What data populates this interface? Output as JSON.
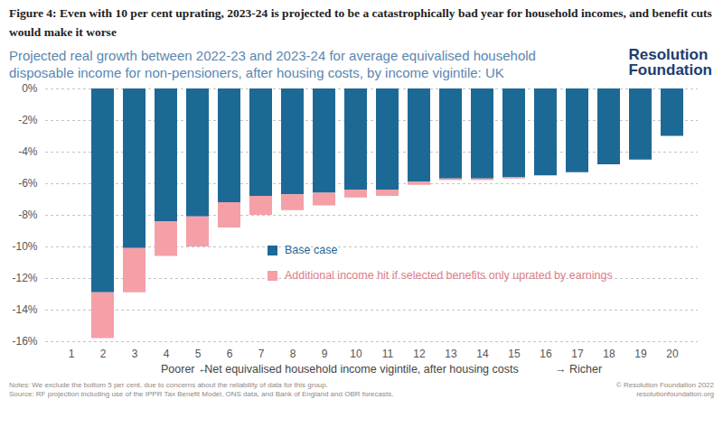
{
  "chart_data": {
    "type": "bar",
    "stacked": true,
    "figure_title": "Figure 4: Even with 10 per cent uprating, 2023-24 is projected to be a catastrophically bad year for household incomes, and benefit cuts would make it worse",
    "title": "Projected real growth between 2022-23 and 2023-24 for average equivalised household disposable income for non-pensioners, after housing costs, by income vigintile: UK",
    "logo": "Resolution Foundation",
    "xlabel": "Net equivalised household income vigintile, after housing costs",
    "xlabel_left": "Poorer ←",
    "xlabel_right": "→ Richer",
    "categories": [
      "1",
      "2",
      "3",
      "4",
      "5",
      "6",
      "7",
      "8",
      "9",
      "10",
      "11",
      "12",
      "13",
      "14",
      "15",
      "16",
      "17",
      "18",
      "19",
      "20"
    ],
    "series": [
      {
        "name": "Base case",
        "color": "#1d6996",
        "values": [
          null,
          -12.9,
          -10.1,
          -8.4,
          -8.1,
          -7.2,
          -6.8,
          -6.7,
          -6.6,
          -6.4,
          -6.4,
          -5.9,
          -5.7,
          -5.7,
          -5.6,
          -5.5,
          -5.3,
          -4.8,
          -4.5,
          -3.0
        ]
      },
      {
        "name": "Additional income hit if selected benefits only uprated by earnings",
        "color": "#f4a0a6",
        "values": [
          null,
          -2.9,
          -2.8,
          -2.2,
          -1.9,
          -1.6,
          -1.2,
          -1.0,
          -0.8,
          -0.5,
          -0.4,
          -0.2,
          -0.1,
          -0.1,
          -0.1,
          0,
          0,
          0,
          0,
          0
        ]
      }
    ],
    "ylim": [
      -16,
      0
    ],
    "yticks": [
      {
        "value": -16,
        "label": "-16%"
      },
      {
        "value": -14,
        "label": "-14%"
      },
      {
        "value": -12,
        "label": "-12%"
      },
      {
        "value": -10,
        "label": "-10%"
      },
      {
        "value": -8,
        "label": "-8%"
      },
      {
        "value": -6,
        "label": "-6%"
      },
      {
        "value": -4,
        "label": "-4%"
      },
      {
        "value": -2,
        "label": "-2%"
      },
      {
        "value": 0,
        "label": "0%"
      }
    ],
    "grid": true,
    "legend": "left",
    "notes": "Notes: We exclude the bottom 5 per cent, due to concerns about the reliability of data for this group.",
    "source": "Source: RF projection including use of the IPPR Tax Benefit Model, ONS data, and Bank of England and OBR forecasts.",
    "copyright": "© Resolution Foundation 2022",
    "website": "resolutionfoundation.org"
  }
}
